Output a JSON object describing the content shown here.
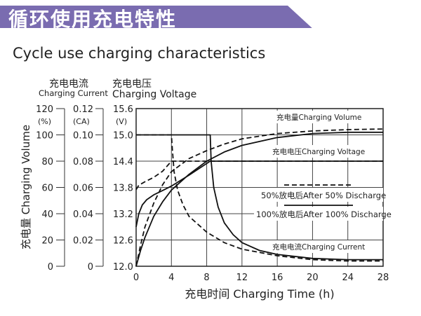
{
  "header": {
    "title": "循环使用充电特性",
    "accent_color": "#7a6cb0"
  },
  "subtitle": "Cycle use charging characteristics",
  "chart_data": {
    "type": "line",
    "xlabel": "充电时间 Charging Time (h)",
    "xlim": [
      0,
      28
    ],
    "x_ticks": [
      "0",
      "4",
      "8",
      "12",
      "16",
      "20",
      "24",
      "28"
    ],
    "grid": true,
    "axes": {
      "volume": {
        "label": "充电量 Charging Volume",
        "unit": "(%)",
        "range": [
          0,
          120
        ],
        "ticks": [
          "0",
          "20",
          "40",
          "60",
          "80",
          "100",
          "120"
        ]
      },
      "current": {
        "label_cn": "充电电流",
        "label_en": "Charging Current",
        "unit": "(CA)",
        "range": [
          0,
          0.12
        ],
        "ticks": [
          "0",
          "0.02",
          "0.04",
          "0.06",
          "0.08",
          "0.10",
          "0.12"
        ]
      },
      "voltage": {
        "label_cn": "充电电压",
        "label_en": "Charging Voltage",
        "unit": "(V)",
        "range": [
          12.0,
          15.6
        ],
        "ticks": [
          "12.0",
          "12.6",
          "13.2",
          "13.8",
          "14.4",
          "15.0",
          "15.6"
        ]
      }
    },
    "curve_labels": {
      "volume": "充电量Charging Volume",
      "voltage": "充电电压Charging Voltage",
      "current": "充电电流Charging Current"
    },
    "legend": {
      "placement": "right-middle",
      "entries": [
        {
          "label": "50%放电后After 50% Discharge",
          "style": "dashed"
        },
        {
          "label": "100%放电后After 100% Discharge",
          "style": "solid"
        }
      ]
    },
    "series": [
      {
        "curve": "volume",
        "axis": "volume",
        "style": "solid",
        "points": [
          [
            0,
            0
          ],
          [
            0.5,
            12
          ],
          [
            1,
            22
          ],
          [
            2,
            38
          ],
          [
            3,
            49
          ],
          [
            4,
            58
          ],
          [
            6,
            70
          ],
          [
            8,
            80
          ],
          [
            10,
            87
          ],
          [
            12,
            92
          ],
          [
            16,
            98
          ],
          [
            20,
            101
          ],
          [
            24,
            102
          ],
          [
            28,
            102
          ]
        ]
      },
      {
        "curve": "volume",
        "axis": "volume",
        "style": "dashed",
        "points": [
          [
            0,
            0
          ],
          [
            0.5,
            16
          ],
          [
            1,
            30
          ],
          [
            2,
            48
          ],
          [
            3,
            62
          ],
          [
            4,
            72
          ],
          [
            6,
            82
          ],
          [
            8,
            88
          ],
          [
            10,
            93
          ],
          [
            12,
            97
          ],
          [
            16,
            101
          ],
          [
            20,
            103
          ],
          [
            24,
            104
          ],
          [
            28,
            104.5
          ]
        ]
      },
      {
        "curve": "voltage",
        "axis": "voltage",
        "style": "solid",
        "points": [
          [
            0,
            12.9
          ],
          [
            0.3,
            13.2
          ],
          [
            0.7,
            13.4
          ],
          [
            1.2,
            13.52
          ],
          [
            2,
            13.63
          ],
          [
            3,
            13.73
          ],
          [
            4,
            13.83
          ],
          [
            6,
            14.08
          ],
          [
            8.4,
            14.4
          ],
          [
            28,
            14.4
          ]
        ]
      },
      {
        "curve": "voltage",
        "axis": "voltage",
        "style": "dashed",
        "points": [
          [
            0,
            13.75
          ],
          [
            0.3,
            13.85
          ],
          [
            1,
            13.93
          ],
          [
            2,
            14.03
          ],
          [
            3,
            14.17
          ],
          [
            4,
            14.4
          ],
          [
            28,
            14.4
          ]
        ]
      },
      {
        "curve": "current",
        "axis": "current",
        "style": "solid",
        "points": [
          [
            0,
            0.1
          ],
          [
            8.4,
            0.1
          ],
          [
            8.5,
            0.08
          ],
          [
            8.8,
            0.06
          ],
          [
            9.3,
            0.045
          ],
          [
            10,
            0.033
          ],
          [
            11,
            0.024
          ],
          [
            12,
            0.018
          ],
          [
            14,
            0.012
          ],
          [
            16,
            0.009
          ],
          [
            20,
            0.006
          ],
          [
            24,
            0.005
          ],
          [
            28,
            0.005
          ]
        ]
      },
      {
        "curve": "current",
        "axis": "current",
        "style": "dashed",
        "points": [
          [
            0,
            0.1
          ],
          [
            4,
            0.1
          ],
          [
            4.1,
            0.09
          ],
          [
            4.3,
            0.072
          ],
          [
            4.7,
            0.058
          ],
          [
            5.3,
            0.047
          ],
          [
            6,
            0.038
          ],
          [
            8,
            0.026
          ],
          [
            10,
            0.018
          ],
          [
            12,
            0.013
          ],
          [
            16,
            0.008
          ],
          [
            20,
            0.005
          ],
          [
            24,
            0.004
          ],
          [
            28,
            0.004
          ]
        ]
      }
    ]
  }
}
